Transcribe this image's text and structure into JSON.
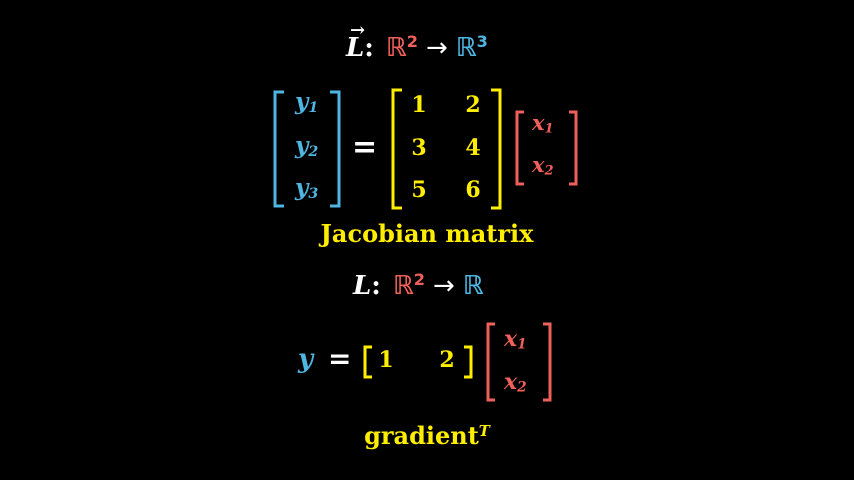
{
  "colors": {
    "background": "#000000",
    "white": "#ffffff",
    "red": "#f0605a",
    "blue": "#4fb6e2",
    "yellow": "#ffee00"
  },
  "eq1": {
    "map_symbol": "L",
    "vector_arrow": "→",
    "colon": ":",
    "domain_base": "ℝ",
    "domain_power": "2",
    "arrow": "→",
    "codomain_base": "ℝ",
    "codomain_power": "3"
  },
  "matrix_eq": {
    "y_vector": [
      {
        "base": "y",
        "sub": "1"
      },
      {
        "base": "y",
        "sub": "2"
      },
      {
        "base": "y",
        "sub": "3"
      }
    ],
    "equals": "=",
    "matrix": [
      [
        "1",
        "2"
      ],
      [
        "3",
        "4"
      ],
      [
        "5",
        "6"
      ]
    ],
    "x_vector": [
      {
        "base": "x",
        "sub": "1"
      },
      {
        "base": "x",
        "sub": "2"
      }
    ],
    "caption": "Jacobian matrix"
  },
  "eq2": {
    "map_symbol": "L",
    "colon": ":",
    "domain_base": "ℝ",
    "domain_power": "2",
    "arrow": "→",
    "codomain_base": "ℝ"
  },
  "gradient_eq": {
    "y": "y",
    "equals": "=",
    "row": [
      "1",
      "2"
    ],
    "x_vector": [
      {
        "base": "x",
        "sub": "1"
      },
      {
        "base": "x",
        "sub": "2"
      }
    ],
    "caption_main": "gradient",
    "caption_sup": "T"
  }
}
